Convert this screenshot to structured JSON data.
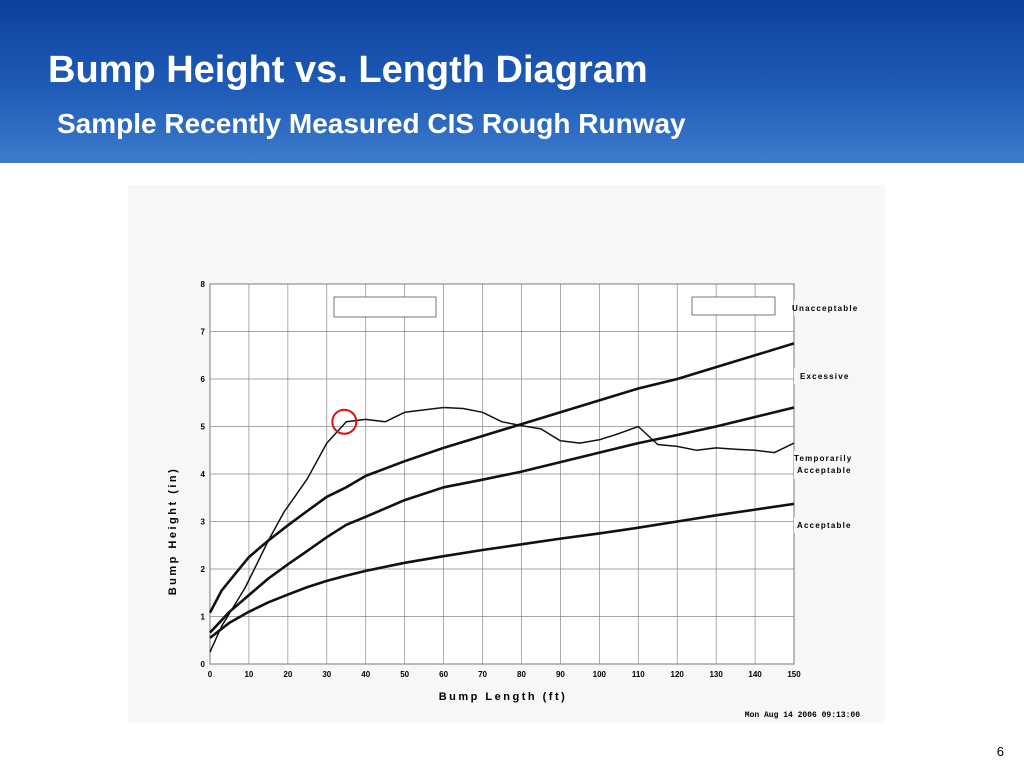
{
  "header": {
    "title": "Bump Height vs. Length Diagram",
    "subtitle": "Sample Recently Measured CIS Rough Runway"
  },
  "page_number": "6",
  "colors": {
    "header_dark": "#0d3f9e",
    "header_light": "#3c7bcc",
    "highlight_circle": "#dd1111"
  },
  "chart_data": {
    "type": "line",
    "xlabel": "Bump Length (ft)",
    "ylabel": "Bump Height (in)",
    "xlim": [
      0,
      150
    ],
    "ylim": [
      0,
      8
    ],
    "xticks": [
      0,
      10,
      20,
      30,
      40,
      50,
      60,
      70,
      80,
      90,
      100,
      110,
      120,
      130,
      140,
      150
    ],
    "yticks": [
      0,
      1,
      2,
      3,
      4,
      5,
      6,
      7,
      8
    ],
    "grid": true,
    "region_labels": [
      "Unacceptable",
      "Excessive",
      "Temporarily Acceptable",
      "Acceptable"
    ],
    "timestamp": "Mon Aug 14 2006 09:13:00",
    "highlight": {
      "x": 34.5,
      "y": 5.1,
      "shape": "circle",
      "color": "#dd1111"
    },
    "series": [
      {
        "role": "excessive-boundary",
        "x": [
          0,
          3,
          6,
          10,
          15,
          20,
          25,
          30,
          35,
          40,
          50,
          60,
          70,
          80,
          90,
          100,
          110,
          120,
          130,
          140,
          150
        ],
        "values": [
          1.08,
          1.55,
          1.85,
          2.25,
          2.6,
          2.92,
          3.22,
          3.52,
          3.72,
          3.96,
          4.27,
          4.55,
          4.8,
          5.05,
          5.3,
          5.55,
          5.8,
          6.0,
          6.25,
          6.5,
          6.75
        ]
      },
      {
        "role": "temporarily-acceptable-boundary",
        "x": [
          0,
          5,
          10,
          15,
          20,
          25,
          30,
          35,
          40,
          50,
          60,
          70,
          80,
          90,
          100,
          110,
          120,
          130,
          140,
          150
        ],
        "values": [
          0.66,
          1.1,
          1.45,
          1.8,
          2.1,
          2.38,
          2.67,
          2.93,
          3.1,
          3.45,
          3.72,
          3.88,
          4.05,
          4.25,
          4.45,
          4.65,
          4.82,
          5.0,
          5.2,
          5.4
        ]
      },
      {
        "role": "acceptable-boundary",
        "x": [
          0,
          5,
          10,
          15,
          20,
          25,
          30,
          35,
          40,
          50,
          60,
          70,
          80,
          90,
          100,
          110,
          120,
          130,
          140,
          150
        ],
        "values": [
          0.55,
          0.87,
          1.1,
          1.3,
          1.46,
          1.62,
          1.75,
          1.86,
          1.96,
          2.13,
          2.27,
          2.4,
          2.52,
          2.64,
          2.75,
          2.87,
          3.0,
          3.13,
          3.25,
          3.37
        ]
      },
      {
        "role": "measured-profile",
        "x": [
          0,
          3,
          6,
          9,
          12,
          15,
          19,
          22,
          25,
          30,
          35,
          40,
          45,
          50,
          55,
          60,
          65,
          70,
          75,
          80,
          85,
          90,
          95,
          100,
          105,
          110,
          115,
          120,
          125,
          130,
          135,
          140,
          145,
          150
        ],
        "values": [
          0.25,
          0.8,
          1.2,
          1.6,
          2.1,
          2.6,
          3.2,
          3.55,
          3.9,
          4.65,
          5.1,
          5.15,
          5.1,
          5.3,
          5.35,
          5.4,
          5.38,
          5.3,
          5.1,
          5.02,
          4.95,
          4.7,
          4.65,
          4.72,
          4.85,
          5.0,
          4.62,
          4.58,
          4.5,
          4.55,
          4.52,
          4.5,
          4.45,
          4.65
        ]
      }
    ]
  }
}
